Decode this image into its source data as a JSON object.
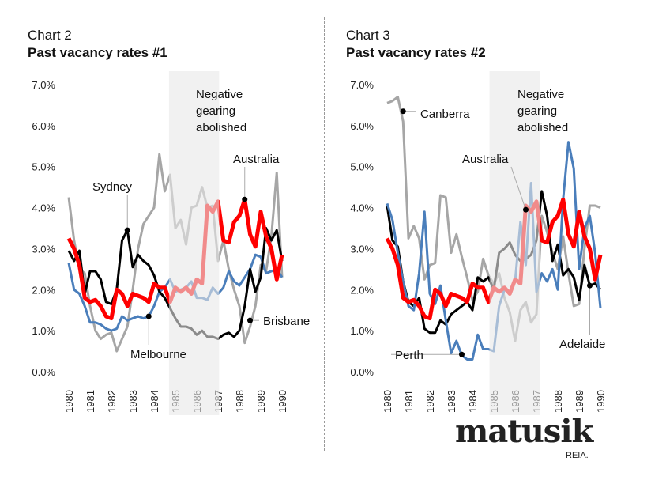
{
  "chart_data": [
    {
      "type": "line",
      "title": "Chart 2",
      "subtitle": "Past vacancy rates #1",
      "x_start": 1980,
      "x_step": 0.25,
      "xticks": [
        "1980",
        "1981",
        "1982",
        "1983",
        "1984",
        "1985",
        "1986",
        "1987",
        "1988",
        "1989",
        "1990"
      ],
      "yticks": [
        "0.0%",
        "1.0%",
        "2.0%",
        "3.0%",
        "4.0%",
        "5.0%",
        "6.0%",
        "7.0%"
      ],
      "ylim": [
        0,
        7
      ],
      "shade": {
        "from": 1984.7,
        "to": 1987.05,
        "label": [
          "Negative",
          "gearing",
          "abolished"
        ]
      },
      "series": [
        {
          "name": "Brisbane",
          "color": "#a6a6a6",
          "width": 3,
          "values": [
            4.25,
            3.2,
            2.5,
            2.4,
            1.6,
            1.0,
            0.8,
            0.9,
            0.95,
            0.5,
            0.8,
            1.1,
            2.0,
            3.0,
            3.6,
            3.8,
            4.0,
            5.3,
            4.4,
            4.8,
            3.5,
            3.7,
            3.1,
            4.0,
            4.05,
            4.5,
            4.0,
            4.05,
            2.7,
            3.2,
            2.5,
            2.0,
            1.6,
            0.7,
            1.1,
            1.6,
            2.6,
            2.45,
            3.3,
            4.85,
            2.3
          ]
        },
        {
          "name": "Melbourne",
          "color": "#4a7ebb",
          "width": 3,
          "values": [
            2.65,
            2.0,
            1.9,
            1.6,
            1.2,
            1.2,
            1.15,
            1.05,
            1.0,
            1.05,
            1.35,
            1.25,
            1.3,
            1.35,
            1.3,
            1.35,
            1.6,
            1.95,
            2.05,
            2.25,
            1.95,
            2.0,
            2.05,
            2.2,
            1.8,
            1.8,
            1.75,
            2.05,
            1.9,
            2.05,
            2.45,
            2.2,
            2.1,
            2.3,
            2.5,
            2.85,
            2.8,
            2.4,
            2.45,
            2.5,
            2.3
          ]
        },
        {
          "name": "Sydney",
          "color": "#000000",
          "width": 3,
          "values": [
            2.95,
            2.7,
            2.95,
            1.9,
            2.45,
            2.45,
            2.25,
            1.7,
            1.65,
            2.0,
            3.2,
            3.45,
            2.55,
            2.85,
            2.7,
            2.6,
            2.35,
            1.95,
            1.8,
            1.55,
            1.3,
            1.1,
            1.1,
            1.05,
            0.9,
            1.0,
            0.85,
            0.85,
            0.8,
            0.9,
            0.95,
            0.85,
            1.0,
            1.6,
            2.5,
            1.95,
            2.3,
            3.5,
            3.2,
            3.45,
            2.7
          ]
        },
        {
          "name": "Australia",
          "color": "#ff0000",
          "width": 5,
          "values": [
            3.25,
            3.0,
            2.6,
            1.8,
            1.7,
            1.75,
            1.6,
            1.35,
            1.3,
            2.0,
            1.9,
            1.6,
            1.9,
            1.85,
            1.8,
            1.7,
            2.15,
            2.05,
            2.05,
            1.7,
            2.05,
            1.95,
            2.05,
            1.9,
            2.25,
            2.15,
            4.05,
            3.9,
            4.15,
            3.2,
            3.15,
            3.65,
            3.8,
            4.2,
            3.35,
            3.05,
            3.9,
            3.3,
            3.0,
            2.25,
            2.85
          ]
        }
      ],
      "annotations": [
        {
          "text": "Sydney",
          "series": "Sydney",
          "x": 1982.75,
          "y": 3.45
        },
        {
          "text": "Melbourne",
          "series": "Melbourne",
          "x": 1983.75,
          "y": 1.35
        },
        {
          "text": "Australia",
          "series": "Australia",
          "x": 1988.25,
          "y": 4.2
        },
        {
          "text": "Brisbane",
          "series": "Brisbane",
          "x": 1988.5,
          "y": 1.25
        }
      ]
    },
    {
      "type": "line",
      "title": "Chart 3",
      "subtitle": "Past vacancy rates #2",
      "x_start": 1980,
      "x_step": 0.25,
      "xticks": [
        "1980",
        "1981",
        "1982",
        "1983",
        "1984",
        "1985",
        "1986",
        "1987",
        "1988",
        "1989",
        "1990"
      ],
      "yticks": [
        "0.0%",
        "1.0%",
        "2.0%",
        "3.0%",
        "4.0%",
        "5.0%",
        "6.0%",
        "7.0%"
      ],
      "ylim": [
        0,
        7
      ],
      "shade": {
        "from": 1984.8,
        "to": 1987.15,
        "label": [
          "Negative",
          "gearing",
          "abolished"
        ]
      },
      "series": [
        {
          "name": "Canberra",
          "color": "#a6a6a6",
          "width": 3,
          "values": [
            6.55,
            6.6,
            6.7,
            6.1,
            3.25,
            3.55,
            3.25,
            2.25,
            2.6,
            2.65,
            4.3,
            4.25,
            2.9,
            3.35,
            2.8,
            2.3,
            1.75,
            1.95,
            2.75,
            2.35,
            2.15,
            2.4,
            1.8,
            1.45,
            0.75,
            1.5,
            1.7,
            1.2,
            1.4,
            3.8,
            3.4,
            2.9,
            2.5,
            3.3,
            2.4,
            1.6,
            1.65,
            3.0,
            4.05,
            4.05,
            4.0
          ]
        },
        {
          "name": "Adelaide",
          "color": "#000000",
          "width": 3,
          "values": [
            4.05,
            3.2,
            3.05,
            2.2,
            1.7,
            1.6,
            1.8,
            1.05,
            0.95,
            0.95,
            1.25,
            1.15,
            1.4,
            1.5,
            1.6,
            1.7,
            1.5,
            2.3,
            2.2,
            2.3,
            2.0,
            2.9,
            3.0,
            3.15,
            2.85,
            2.7,
            2.75,
            2.85,
            3.2,
            4.4,
            3.8,
            2.7,
            3.1,
            2.35,
            2.5,
            2.3,
            1.75,
            2.6,
            2.1,
            2.15,
            2.0
          ]
        },
        {
          "name": "Perth",
          "color": "#4a7ebb",
          "width": 3,
          "values": [
            4.1,
            3.7,
            2.9,
            2.2,
            1.6,
            1.5,
            2.4,
            3.9,
            1.9,
            1.65,
            2.1,
            1.25,
            0.45,
            0.75,
            0.4,
            0.3,
            0.3,
            0.9,
            0.55,
            0.55,
            0.5,
            1.6,
            2.0,
            1.95,
            2.2,
            3.65,
            2.6,
            4.6,
            1.95,
            2.4,
            2.2,
            2.5,
            2.0,
            4.2,
            5.6,
            4.95,
            2.5,
            3.5,
            3.8,
            2.9,
            1.55
          ]
        },
        {
          "name": "Australia",
          "color": "#ff0000",
          "width": 5,
          "values": [
            3.25,
            3.0,
            2.6,
            1.8,
            1.7,
            1.75,
            1.6,
            1.35,
            1.3,
            2.0,
            1.9,
            1.6,
            1.9,
            1.85,
            1.8,
            1.7,
            2.15,
            2.05,
            2.05,
            1.7,
            2.05,
            1.95,
            2.05,
            1.9,
            2.25,
            2.15,
            4.05,
            3.9,
            4.15,
            3.2,
            3.15,
            3.65,
            3.8,
            4.2,
            3.35,
            3.05,
            3.9,
            3.3,
            3.0,
            2.25,
            2.85
          ]
        }
      ],
      "annotations": [
        {
          "text": "Canberra",
          "series": "Canberra",
          "x": 1980.75,
          "y": 6.35
        },
        {
          "text": "Australia",
          "series": "Australia",
          "x": 1986.5,
          "y": 3.95
        },
        {
          "text": "Perth",
          "series": "Perth",
          "x": 1983.5,
          "y": 0.42
        },
        {
          "text": "Adelaide",
          "series": "Adelaide",
          "x": 1989.5,
          "y": 2.1
        }
      ]
    }
  ],
  "logo": {
    "name": "matusik",
    "sub": "REIA."
  }
}
